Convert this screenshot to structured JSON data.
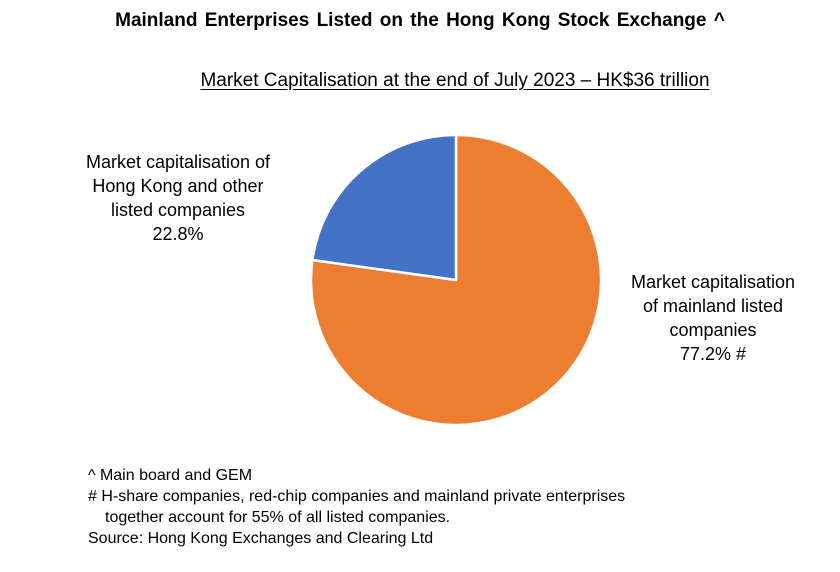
{
  "title": "Mainland  Enterprises  Listed  on the Hong Kong Stock Exchange ^",
  "subtitle": "Market Capitalisation at the end of July 2023 – HK$36 trillion",
  "chart_data": {
    "type": "pie",
    "slices": [
      {
        "label_lines": [
          "Market capitalisation",
          "of mainland  listed",
          "companies"
        ],
        "value": 77.2,
        "value_label": "77.2% #",
        "color": "#ED7D31"
      },
      {
        "label_lines": [
          "Market capitalisation of",
          "Hong Kong and other",
          "listed companies"
        ],
        "value": 22.8,
        "value_label": "22.8%",
        "color": "#4472C4"
      }
    ]
  },
  "notes": {
    "line1": "^ Main board and GEM",
    "line2": "# H-share companies, red-chip companies and mainland private enterprises",
    "line3": "together account for 55% of all listed companies.",
    "line4": "Source: Hong Kong Exchanges and Clearing Ltd"
  }
}
